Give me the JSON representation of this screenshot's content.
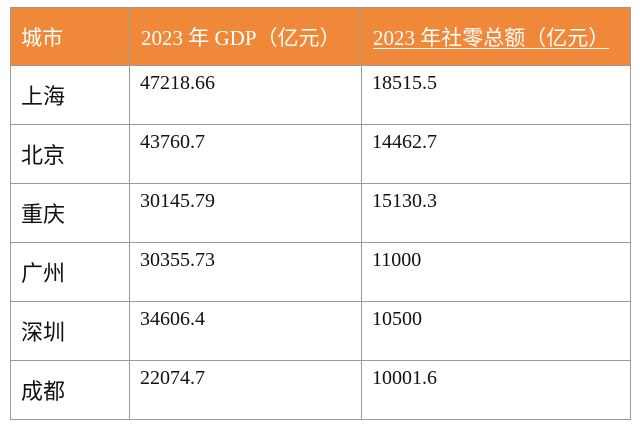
{
  "table": {
    "headers": {
      "city": "城市",
      "gdp": "2023 年 GDP（亿元）",
      "retail": "2023 年社零总额（亿元）"
    },
    "rows": [
      {
        "city": "上海",
        "gdp": "47218.66",
        "retail": "18515.5"
      },
      {
        "city": "北京",
        "gdp": "43760.7",
        "retail": "14462.7"
      },
      {
        "city": "重庆",
        "gdp": "30145.79",
        "retail": "15130.3"
      },
      {
        "city": "广州",
        "gdp": "30355.73",
        "retail": "11000"
      },
      {
        "city": "深圳",
        "gdp": "34606.4",
        "retail": "10500"
      },
      {
        "city": "成都",
        "gdp": "22074.7",
        "retail": "10001.6"
      }
    ]
  },
  "colors": {
    "header_bg": "#f0883a",
    "header_text": "#ffffff",
    "border": "#9a9a9a",
    "text": "#111111"
  }
}
